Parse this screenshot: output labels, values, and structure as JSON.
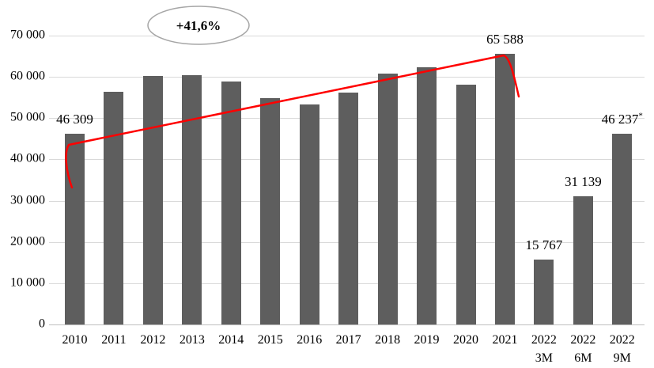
{
  "chart_data": {
    "type": "bar",
    "title": "",
    "xlabel": "",
    "ylabel": "",
    "categories": [
      "2010",
      "2011",
      "2012",
      "2013",
      "2014",
      "2015",
      "2016",
      "2017",
      "2018",
      "2019",
      "2020",
      "2021",
      "2022\n3M",
      "2022\n6M",
      "2022\n9M"
    ],
    "values": [
      46309,
      56400,
      60200,
      60500,
      58900,
      54900,
      53300,
      56200,
      60800,
      62400,
      58100,
      65588,
      15767,
      31139,
      46237
    ],
    "bar_labels": [
      {
        "index": 0,
        "text": "46 309"
      },
      {
        "index": 11,
        "text": "65 588"
      },
      {
        "index": 12,
        "text": "15 767"
      },
      {
        "index": 13,
        "text": "31 139"
      },
      {
        "index": 14,
        "text": "46 237",
        "sup": "*"
      }
    ],
    "ylim": [
      0,
      70000
    ],
    "ytick_step": 10000,
    "yticks": [
      "0",
      "10 000",
      "20 000",
      "30 000",
      "40 000",
      "50 000",
      "60 000",
      "70 000"
    ],
    "grid": true,
    "legend": "none",
    "trend": {
      "from_category": "2010",
      "to_category": "2021",
      "growth_label": "+41,6%"
    },
    "colors": {
      "bar": "#5e5e5e",
      "grid": "#d9d9d9",
      "axis": "#bfbfbf",
      "trend": "#ff0000",
      "ellipse_stroke": "#a6a6a6",
      "text": "#000000"
    }
  }
}
